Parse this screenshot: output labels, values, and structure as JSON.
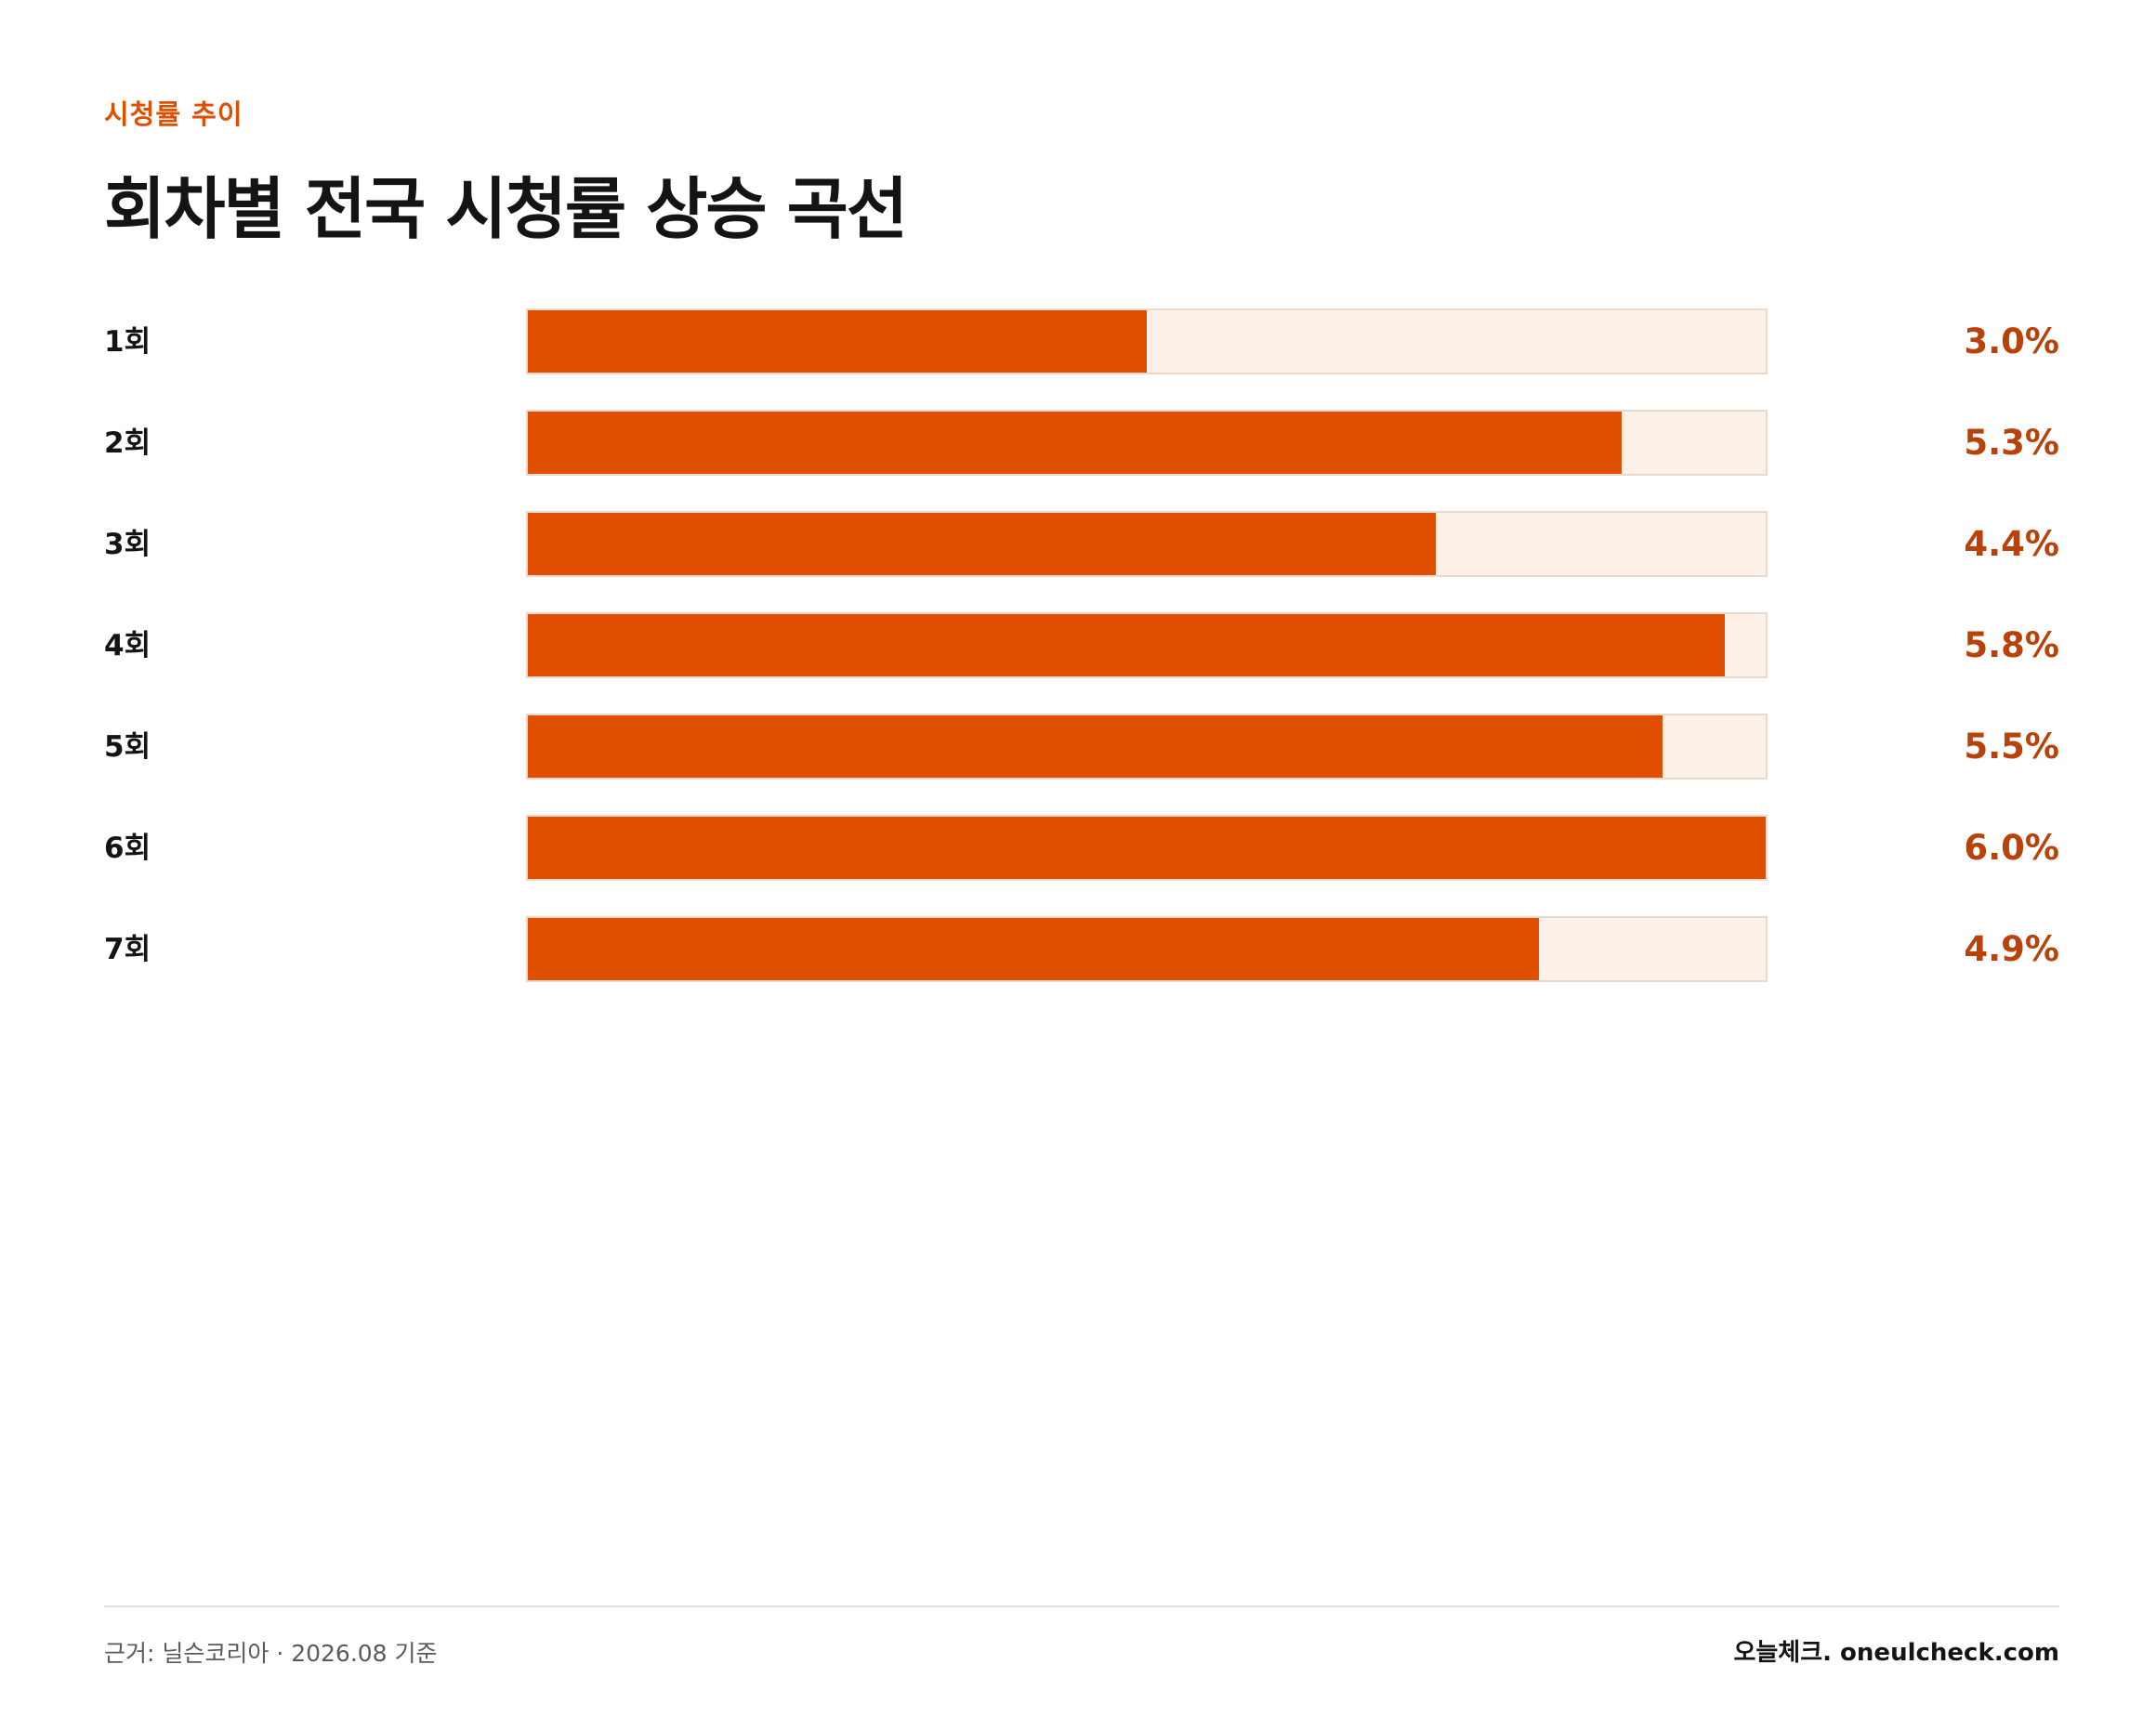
{
  "header": {
    "eyebrow": "시청률 추이",
    "title": "회차별 전국 시청률 상승 곡선"
  },
  "chart_data": {
    "type": "bar",
    "orientation": "horizontal",
    "categories": [
      "1회",
      "2회",
      "3회",
      "4회",
      "5회",
      "6회",
      "7회"
    ],
    "values": [
      3.0,
      5.3,
      4.4,
      5.8,
      5.5,
      6.0,
      4.9
    ],
    "value_labels": [
      "3.0%",
      "5.3%",
      "4.4%",
      "5.8%",
      "5.5%",
      "6.0%",
      "4.9%"
    ],
    "xlim": [
      0,
      6.0
    ],
    "title": "",
    "xlabel": "",
    "ylabel": "",
    "grid": false,
    "colors": {
      "bar": "#e04e00",
      "track": "#fdf0e6",
      "track_border": "#ead8cc",
      "value_text": "#b8420a"
    }
  },
  "footer": {
    "source": "근거: 닐슨코리아 · 2026.08 기준",
    "brand": "오늘체크. oneulcheck.com"
  }
}
